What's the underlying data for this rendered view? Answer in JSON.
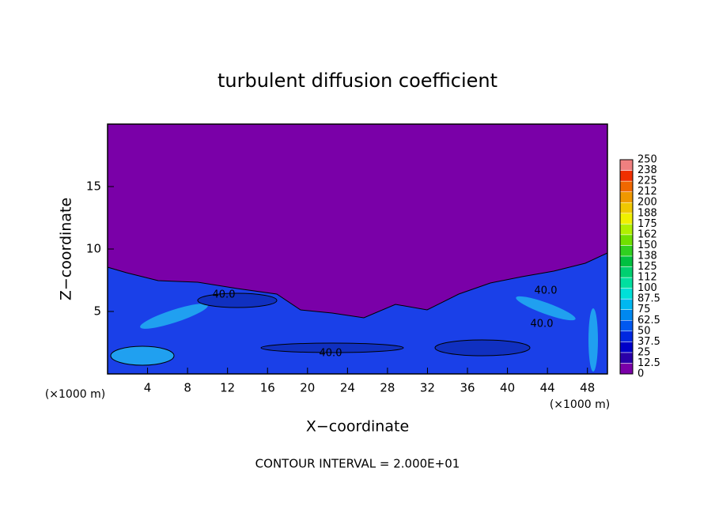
{
  "chart_data": {
    "type": "contour",
    "title": "turbulent diffusion coefficient",
    "xlabel": "X−coordinate",
    "ylabel": "Z−coordinate",
    "x_unit": "(×1000 m)",
    "y_unit": "(×1000 m)",
    "footnote": "CONTOUR INTERVAL = 2.000E+01",
    "xlim": [
      0,
      50
    ],
    "ylim": [
      0,
      20
    ],
    "xticks": [
      4,
      8,
      12,
      16,
      20,
      24,
      28,
      32,
      36,
      40,
      44,
      48
    ],
    "yticks": [
      5,
      10,
      15
    ],
    "contour_labels": [
      {
        "value": 40,
        "label": "40.0"
      },
      {
        "value": 40,
        "label": "40.0"
      },
      {
        "value": 40,
        "label": "40.0"
      },
      {
        "value": 40,
        "label": "40.0"
      }
    ],
    "colorbar": {
      "levels": [
        0,
        12.5,
        25,
        37.5,
        50,
        62.5,
        75,
        87.5,
        100,
        112,
        125,
        138,
        150,
        162,
        175,
        188,
        200,
        212,
        225,
        238,
        250
      ],
      "colors": [
        "#7a00a8",
        "#2a00a8",
        "#0000c8",
        "#0028e0",
        "#0058f0",
        "#0088f0",
        "#00b8f0",
        "#00e0d8",
        "#00e0a0",
        "#00d070",
        "#00c040",
        "#30d020",
        "#70e000",
        "#b0f000",
        "#f0f000",
        "#f0c800",
        "#f09800",
        "#f06800",
        "#f03000",
        "#f08080"
      ]
    }
  }
}
